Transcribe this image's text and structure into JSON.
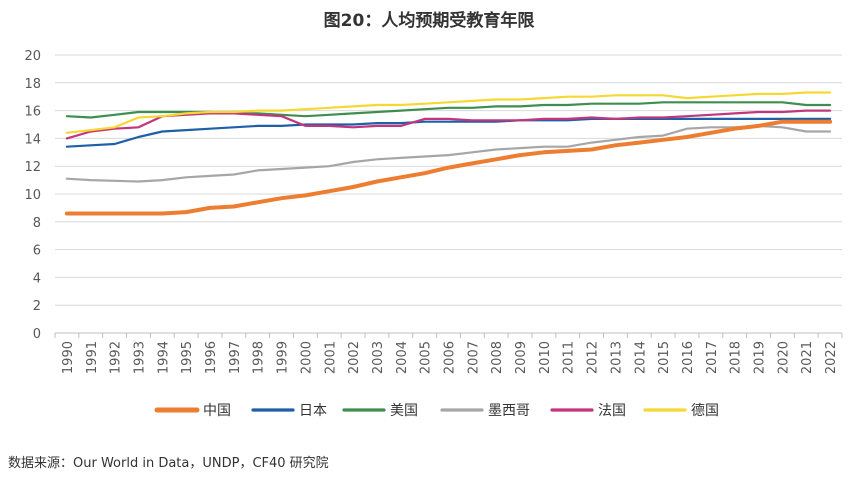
{
  "title": "图20：人均预期受教育年限",
  "source": "数据来源：Our World in Data，UNDP，CF40 研究院",
  "chart_data": {
    "type": "line",
    "title": "图20：人均预期受教育年限",
    "xlabel": "",
    "ylabel": "",
    "ylim": [
      0,
      20
    ],
    "yticks": [
      0,
      2,
      4,
      6,
      8,
      10,
      12,
      14,
      16,
      18,
      20
    ],
    "grid": true,
    "legend_position": "bottom",
    "categories": [
      "1990",
      "1991",
      "1992",
      "1993",
      "1994",
      "1995",
      "1996",
      "1997",
      "1998",
      "1999",
      "2000",
      "2001",
      "2002",
      "2003",
      "2004",
      "2005",
      "2006",
      "2007",
      "2008",
      "2009",
      "2010",
      "2011",
      "2012",
      "2013",
      "2014",
      "2015",
      "2016",
      "2017",
      "2018",
      "2019",
      "2020",
      "2021",
      "2022"
    ],
    "series": [
      {
        "name": "中国",
        "color": "#ED7D31",
        "width": 4,
        "values": [
          8.6,
          8.6,
          8.6,
          8.6,
          8.6,
          8.7,
          9.0,
          9.1,
          9.4,
          9.7,
          9.9,
          10.2,
          10.5,
          10.9,
          11.2,
          11.5,
          11.9,
          12.2,
          12.5,
          12.8,
          13.0,
          13.1,
          13.2,
          13.5,
          13.7,
          13.9,
          14.1,
          14.4,
          14.7,
          14.9,
          15.2,
          15.2,
          15.2
        ]
      },
      {
        "name": "日本",
        "color": "#1F5FA8",
        "width": 2.2,
        "values": [
          13.4,
          13.5,
          13.6,
          14.1,
          14.5,
          14.6,
          14.7,
          14.8,
          14.9,
          14.9,
          15.0,
          15.0,
          15.0,
          15.1,
          15.1,
          15.2,
          15.2,
          15.2,
          15.2,
          15.3,
          15.3,
          15.3,
          15.4,
          15.4,
          15.4,
          15.4,
          15.4,
          15.4,
          15.4,
          15.4,
          15.4,
          15.4,
          15.4
        ]
      },
      {
        "name": "美国",
        "color": "#3E8E50",
        "width": 2.2,
        "values": [
          15.6,
          15.5,
          15.7,
          15.9,
          15.9,
          15.9,
          15.9,
          15.8,
          15.8,
          15.7,
          15.6,
          15.7,
          15.8,
          15.9,
          16.0,
          16.1,
          16.2,
          16.2,
          16.3,
          16.3,
          16.4,
          16.4,
          16.5,
          16.5,
          16.5,
          16.6,
          16.6,
          16.6,
          16.6,
          16.6,
          16.6,
          16.4,
          16.4
        ]
      },
      {
        "name": "墨西哥",
        "color": "#A6A6A6",
        "width": 2.2,
        "values": [
          11.1,
          11.0,
          10.95,
          10.9,
          11.0,
          11.2,
          11.3,
          11.4,
          11.7,
          11.8,
          11.9,
          12.0,
          12.3,
          12.5,
          12.6,
          12.7,
          12.8,
          13.0,
          13.2,
          13.3,
          13.4,
          13.4,
          13.7,
          13.9,
          14.1,
          14.2,
          14.7,
          14.8,
          14.8,
          14.9,
          14.8,
          14.5,
          14.5
        ]
      },
      {
        "name": "法国",
        "color": "#C2367E",
        "width": 2.2,
        "values": [
          14.0,
          14.5,
          14.7,
          14.8,
          15.6,
          15.7,
          15.8,
          15.8,
          15.7,
          15.6,
          14.9,
          14.9,
          14.8,
          14.9,
          14.9,
          15.4,
          15.4,
          15.3,
          15.3,
          15.3,
          15.4,
          15.4,
          15.5,
          15.4,
          15.5,
          15.5,
          15.6,
          15.7,
          15.8,
          15.9,
          15.9,
          16.0,
          16.0
        ]
      },
      {
        "name": "德国",
        "color": "#F5D833",
        "width": 2.2,
        "values": [
          14.4,
          14.6,
          14.8,
          15.5,
          15.6,
          15.8,
          15.9,
          15.9,
          16.0,
          16.0,
          16.1,
          16.2,
          16.3,
          16.4,
          16.4,
          16.5,
          16.6,
          16.7,
          16.8,
          16.8,
          16.9,
          17.0,
          17.0,
          17.1,
          17.1,
          17.1,
          16.9,
          17.0,
          17.1,
          17.2,
          17.2,
          17.3,
          17.3
        ]
      }
    ]
  }
}
